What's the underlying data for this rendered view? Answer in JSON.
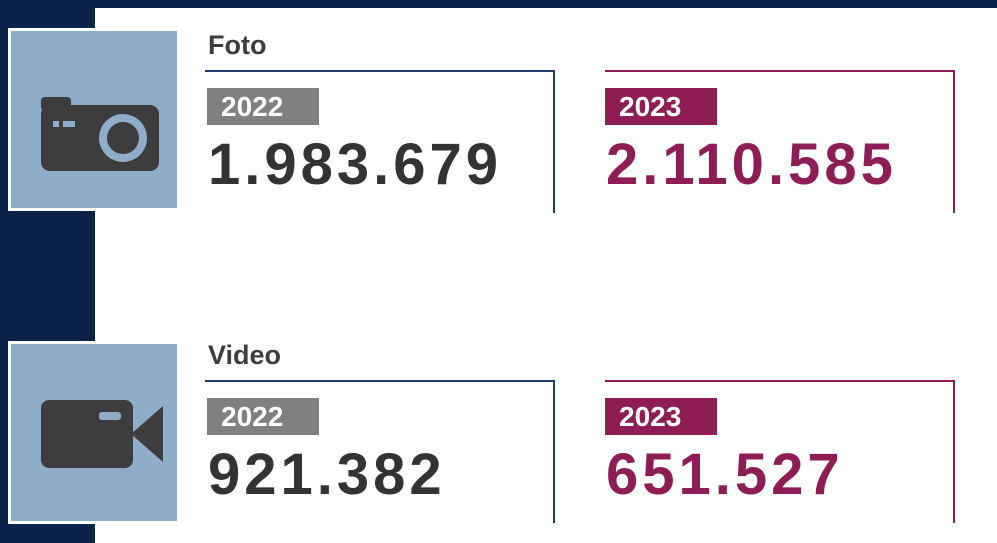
{
  "sections": [
    {
      "title": "Foto",
      "items": [
        {
          "year": "2022",
          "value": "1.983.679"
        },
        {
          "year": "2023",
          "value": "2.110.585"
        }
      ]
    },
    {
      "title": "Video",
      "items": [
        {
          "year": "2022",
          "value": "921.382"
        },
        {
          "year": "2023",
          "value": "651.527"
        }
      ]
    }
  ]
}
